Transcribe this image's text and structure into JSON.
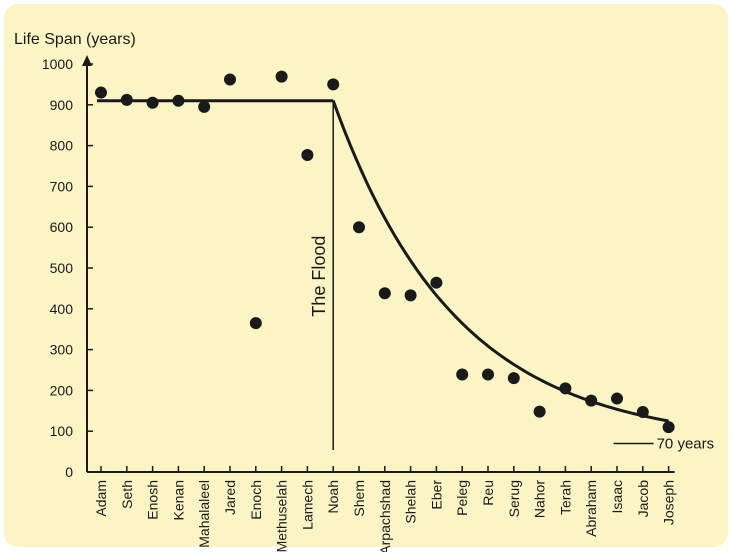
{
  "chart_data": {
    "type": "scatter",
    "title": "",
    "ylabel": "Life Span (years)",
    "xlabel": "",
    "ylim": [
      0,
      1000
    ],
    "yticks": [
      0,
      100,
      200,
      300,
      400,
      500,
      600,
      700,
      800,
      900,
      1000
    ],
    "grid": false,
    "categories": [
      "Adam",
      "Seth",
      "Enosh",
      "Kenan",
      "Mahalaleel",
      "Jared",
      "Enoch",
      "Methuselah",
      "Lamech",
      "Noah",
      "Shem",
      "Arpachshad",
      "Shelah",
      "Eber",
      "Peleg",
      "Reu",
      "Serug",
      "Nahor",
      "Terah",
      "Abraham",
      "Isaac",
      "Jacob",
      "Joseph"
    ],
    "values": [
      930,
      912,
      905,
      910,
      895,
      962,
      365,
      969,
      777,
      950,
      600,
      438,
      433,
      464,
      239,
      239,
      230,
      148,
      205,
      175,
      180,
      147,
      110
    ],
    "trend_line": {
      "pre_flood_level": 910,
      "flood_at": "Noah",
      "asymptote": 70,
      "end_value": 125
    },
    "annotations": [
      {
        "text": "The Flood",
        "at": "Noah"
      },
      {
        "text": "70 years",
        "value": 70
      }
    ]
  }
}
